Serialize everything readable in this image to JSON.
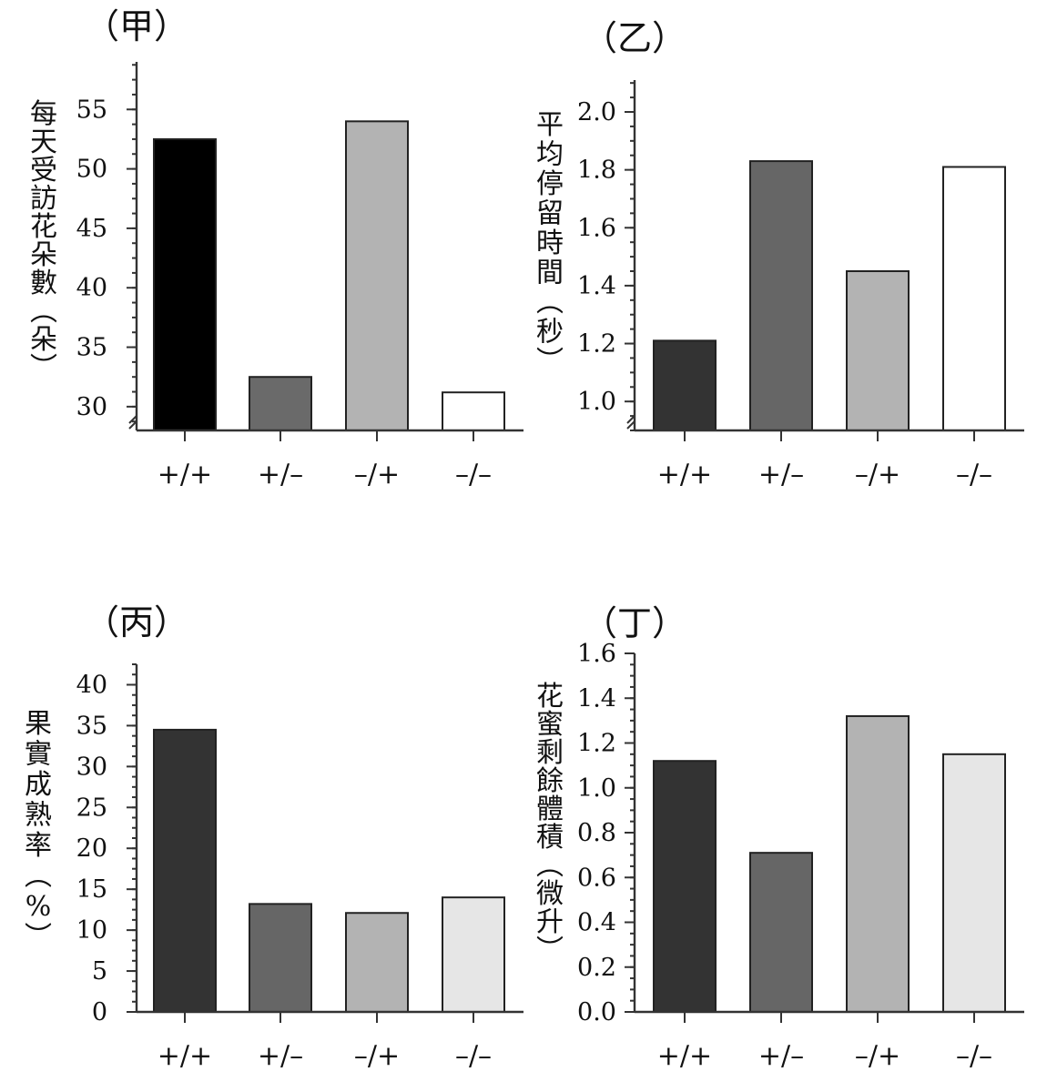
{
  "chart_data": [
    {
      "type": "bar",
      "title": "（甲）",
      "ylabel": "每天受訪花朵數（朵）",
      "categories": [
        "+/+",
        "+/–",
        "–/+",
        "–/–"
      ],
      "values": [
        52.5,
        32.5,
        54.0,
        31.2
      ],
      "colors": [
        "#000000",
        "#6a6a6a",
        "#b3b3b3",
        "#ffffff"
      ],
      "ylim": [
        28,
        59
      ],
      "yticks": [
        30,
        35,
        40,
        45,
        50,
        55
      ],
      "ytick_labels": [
        "30",
        "35",
        "40",
        "45",
        "50",
        "55"
      ],
      "axis_break": true,
      "grid": false
    },
    {
      "type": "bar",
      "title": "（乙）",
      "ylabel": "平均停留時間（秒）",
      "categories": [
        "+/+",
        "+/–",
        "–/+",
        "–/–"
      ],
      "values": [
        1.21,
        1.83,
        1.45,
        1.81
      ],
      "colors": [
        "#333333",
        "#666666",
        "#b3b3b3",
        "#ffffff"
      ],
      "ylim": [
        0.9,
        2.11
      ],
      "yticks": [
        1.0,
        1.2,
        1.4,
        1.6,
        1.8,
        2.0
      ],
      "ytick_labels": [
        "1.0",
        "1.2",
        "1.4",
        "1.6",
        "1.8",
        "2.0"
      ],
      "axis_break": true,
      "grid": false
    },
    {
      "type": "bar",
      "title": "（丙）",
      "ylabel": "果實成熟率（%）",
      "categories": [
        "+/+",
        "+/–",
        "–/+",
        "–/–"
      ],
      "values": [
        34.5,
        13.2,
        12.1,
        14.0
      ],
      "colors": [
        "#333333",
        "#666666",
        "#b3b3b3",
        "#e6e6e6"
      ],
      "ylim": [
        0,
        42.5
      ],
      "yticks": [
        0,
        5,
        10,
        15,
        20,
        25,
        30,
        35,
        40
      ],
      "ytick_labels": [
        "0",
        "5",
        "10",
        "15",
        "20",
        "25",
        "30",
        "35",
        "40"
      ],
      "axis_break": false,
      "grid": false
    },
    {
      "type": "bar",
      "title": "（丁）",
      "ylabel": "花蜜剩餘體積（微升）",
      "categories": [
        "+/+",
        "+/–",
        "–/+",
        "–/–"
      ],
      "values": [
        1.12,
        0.71,
        1.32,
        1.15
      ],
      "colors": [
        "#333333",
        "#666666",
        "#b3b3b3",
        "#e6e6e6"
      ],
      "ylim": [
        0,
        1.6
      ],
      "yticks": [
        0.0,
        0.2,
        0.4,
        0.6,
        0.8,
        1.0,
        1.2,
        1.4,
        1.6
      ],
      "ytick_labels": [
        "0.0",
        "0.2",
        "0.4",
        "0.6",
        "0.8",
        "1.0",
        "1.2",
        "1.4",
        "1.6"
      ],
      "axis_break": false,
      "grid": false
    }
  ]
}
